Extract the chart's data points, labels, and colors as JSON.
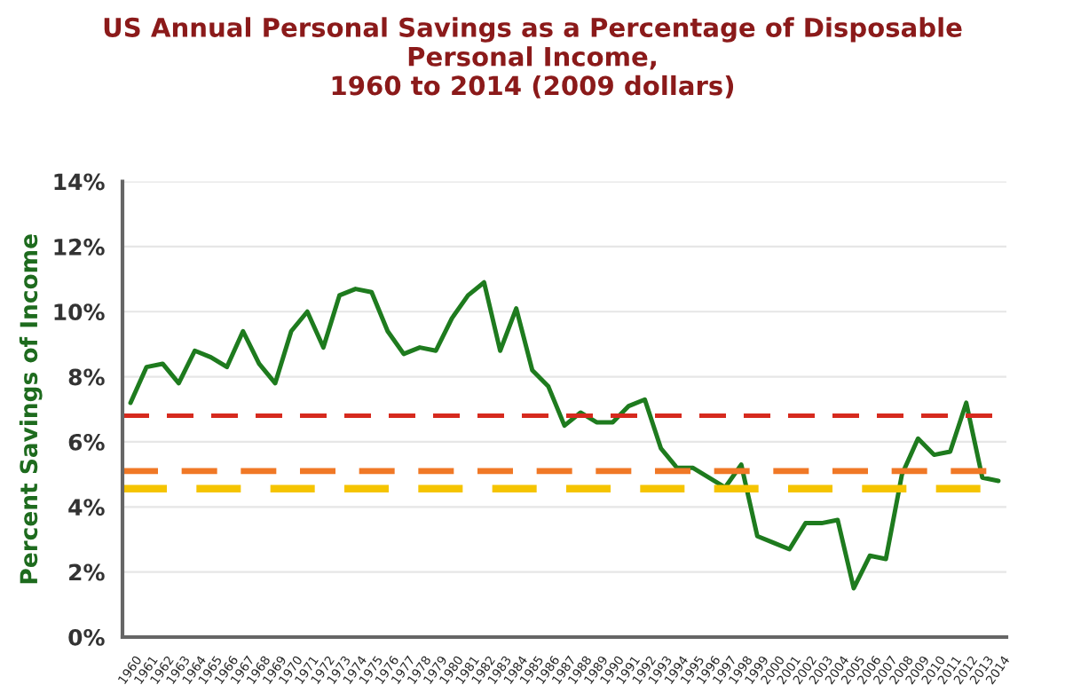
{
  "chart_data": {
    "type": "line",
    "title": "US Annual Personal Savings as a Percentage of Disposable\nPersonal Income,\n1960 to 2014 (2009 dollars)",
    "ylabel": "Percent Savings of Income",
    "categories": [
      "1960",
      "1961",
      "1962",
      "1963",
      "1964",
      "1965",
      "1966",
      "1967",
      "1968",
      "1969",
      "1970",
      "1971",
      "1972",
      "1973",
      "1974",
      "1975",
      "1976",
      "1977",
      "1978",
      "1979",
      "1980",
      "1981",
      "1982",
      "1983",
      "1984",
      "1985",
      "1986",
      "1987",
      "1988",
      "1989",
      "1990",
      "1991",
      "1992",
      "1993",
      "1994",
      "1995",
      "1996",
      "1997",
      "1998",
      "1999",
      "2000",
      "2001",
      "2002",
      "2003",
      "2004",
      "2005",
      "2006",
      "2007",
      "2008",
      "2009",
      "2010",
      "2011",
      "2012",
      "2013",
      "2014"
    ],
    "series": [
      {
        "color": "#1e7b1e",
        "values": [
          7.2,
          8.3,
          8.4,
          7.8,
          8.8,
          8.6,
          8.3,
          9.4,
          8.4,
          7.8,
          9.4,
          10.0,
          8.9,
          10.5,
          10.7,
          10.6,
          9.4,
          8.7,
          8.9,
          8.8,
          9.8,
          10.5,
          10.9,
          8.8,
          10.1,
          8.2,
          7.7,
          6.5,
          6.9,
          6.6,
          6.6,
          7.1,
          7.3,
          5.8,
          5.2,
          5.2,
          4.9,
          4.6,
          5.3,
          3.1,
          2.9,
          2.7,
          3.5,
          3.5,
          3.6,
          1.5,
          2.5,
          2.4,
          5.0,
          6.1,
          5.6,
          5.7,
          7.2,
          4.9,
          4.8
        ]
      }
    ],
    "ylim": [
      0,
      14
    ],
    "yticks": [
      {
        "value": 0,
        "label": "0%"
      },
      {
        "value": 2,
        "label": "2%"
      },
      {
        "value": 4,
        "label": "4%"
      },
      {
        "value": 6,
        "label": "6%"
      },
      {
        "value": 8,
        "label": "8%"
      },
      {
        "value": 10,
        "label": "10%"
      },
      {
        "value": 12,
        "label": "12%"
      },
      {
        "value": 14,
        "label": "14%"
      }
    ],
    "ref_lines": [
      {
        "axis": "y",
        "value": 6.8,
        "color": "#d62a1e",
        "line_style": "dashed"
      },
      {
        "axis": "y",
        "value": 5.1,
        "color": "#f07826",
        "line_style": "dashed"
      },
      {
        "axis": "y",
        "value": 4.56,
        "color": "#f5c400",
        "line_style": "dashed"
      }
    ],
    "grid": "y",
    "legend": false,
    "marker": "none",
    "line_style": "solid"
  }
}
